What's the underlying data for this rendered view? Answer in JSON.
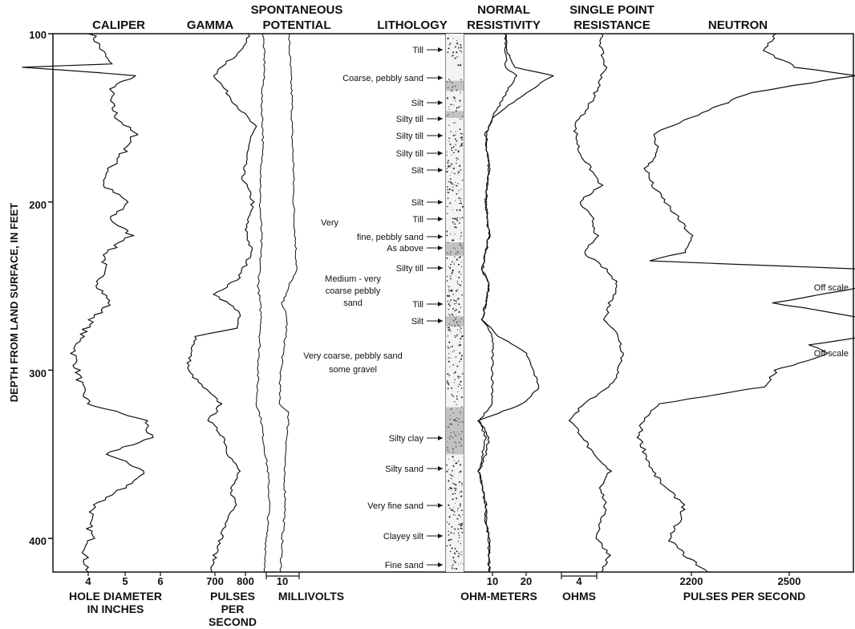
{
  "chart_data": {
    "type": "line",
    "ylabel": "DEPTH FROM LAND SURFACE, IN FEET",
    "ylim": [
      100,
      420
    ],
    "y_ticks": [
      "100",
      "200",
      "300",
      "400"
    ],
    "tracks": [
      {
        "key": "caliper",
        "title": "CALIPER",
        "xlabel": "HOLE DIAMETER IN INCHES",
        "xlabel_lines": [
          "HOLE DIAMETER",
          "IN INCHES"
        ],
        "ticks": [
          "4",
          "5",
          "6"
        ],
        "series": [
          {
            "depth": [
              100,
              118,
              120,
              125,
              130,
              140,
              150,
              160,
              170,
              180,
              190,
              200,
              210,
              220,
              230,
              240,
              250,
              260,
              270,
              280,
              290,
              300,
              310,
              320,
              330,
              340,
              350,
              360,
              370,
              380,
              390,
              400,
              410,
              420
            ],
            "values": [
              4.1,
              4.6,
              2.2,
              5.4,
              4.7,
              4.6,
              4.8,
              5.3,
              5.0,
              4.6,
              4.4,
              5.1,
              4.6,
              5.2,
              4.5,
              4.4,
              4.3,
              4.6,
              4.1,
              3.8,
              3.6,
              3.7,
              3.8,
              4.0,
              5.6,
              5.7,
              4.5,
              5.6,
              5.0,
              4.2,
              4.0,
              4.1,
              3.9,
              4.0
            ]
          }
        ]
      },
      {
        "key": "gamma",
        "title": "GAMMA",
        "xlabel": "PULSES PER SECOND",
        "xlabel_lines": [
          "PULSES",
          "PER",
          "SECOND"
        ],
        "ticks": [
          "700",
          "800"
        ],
        "series": [
          {
            "depth": [
              100,
              110,
              118,
              125,
              140,
              155,
              170,
              185,
              200,
              215,
              230,
              245,
              255,
              265,
              275,
              280,
              290,
              300,
              310,
              320,
              330,
              340,
              350,
              360,
              370,
              380,
              390,
              400,
              410,
              420
            ],
            "values": [
              810,
              790,
              730,
              700,
              760,
              830,
              805,
              790,
              825,
              800,
              820,
              780,
              700,
              780,
              770,
              640,
              620,
              610,
              660,
              720,
              680,
              730,
              745,
              780,
              750,
              770,
              740,
              720,
              700,
              690
            ]
          }
        ]
      },
      {
        "key": "sp",
        "title": "SPONTANEOUS POTENTIAL",
        "title_lines": [
          "SPONTANEOUS",
          "POTENTIAL"
        ],
        "xlabel": "MILLIVOLTS",
        "ticks": [
          "10"
        ],
        "series": [
          {
            "depth": [
              100,
              120,
              140,
              160,
              180,
              200,
              220,
              240,
              250,
              260,
              270,
              280,
              300,
              320,
              325,
              340,
              360,
              380,
              400,
              420
            ],
            "values": [
              14,
              15,
              16,
              16,
              17,
              17,
              18,
              19,
              14,
              10,
              13,
              12,
              9,
              8,
              14,
              13,
              11,
              12,
              10,
              9
            ]
          },
          {
            "depth": [
              100,
              120,
              140,
              160,
              180,
              200,
              220,
              240,
              250,
              260,
              270,
              280,
              300,
              320,
              330,
              340,
              360,
              380,
              400,
              420
            ],
            "values": [
              -2,
              -1,
              -3,
              -2,
              -3,
              -4,
              -3,
              -4,
              -5,
              -4,
              -3,
              -4,
              -5,
              -6,
              -3,
              -2,
              1,
              2,
              0,
              -1
            ]
          }
        ]
      },
      {
        "key": "lithology",
        "title": "LITHOLOGY",
        "units": [
          "Till",
          "Coarse, pebbly sand",
          "Silt",
          "Silty till",
          "Silty till",
          "Silty till",
          "Silt",
          "Silt",
          "Till",
          "Very",
          "fine, pebbly sand",
          "As above",
          "Silty till",
          "Medium - very",
          "coarse pebbly",
          "sand",
          "Till",
          "Silt",
          "Very coarse, pebbly sand",
          "some gravel",
          "Silty clay",
          "Silty sand",
          "Very fine sand",
          "Clayey silt",
          "Fine sand"
        ]
      },
      {
        "key": "resistivity",
        "title": "NORMAL RESISTIVITY",
        "title_lines": [
          "NORMAL",
          "RESISTIVITY"
        ],
        "xlabel": "OHM-METERS",
        "ticks": [
          "10",
          "20"
        ],
        "series": [
          {
            "depth": [
              100,
              110,
              120,
              125,
              135,
              150,
              160,
              180,
              200,
              220,
              230,
              240,
              250,
              260,
              270,
              280,
              290,
              300,
              310,
              320,
              330,
              340,
              350,
              360,
              370,
              380,
              390,
              400,
              410,
              420
            ],
            "values": [
              14,
              14,
              17,
              28,
              20,
              10,
              8,
              9,
              8,
              9,
              8,
              7,
              9,
              8,
              7,
              12,
              20,
              22,
              24,
              19,
              6,
              9,
              8,
              6,
              7,
              8,
              8,
              9,
              9,
              9
            ]
          },
          {
            "depth": [
              100,
              110,
              120,
              125,
              135,
              150,
              160,
              180,
              200,
              220,
              230,
              240,
              250,
              260,
              270,
              280,
              290,
              300,
              310,
              320,
              330,
              340,
              350,
              360,
              370,
              380,
              390,
              400,
              410,
              420
            ],
            "values": [
              14,
              14,
              14,
              17,
              14,
              10,
              8,
              9,
              8,
              9,
              8,
              7,
              9,
              8,
              7,
              10,
              10,
              10,
              10,
              10,
              6,
              8,
              7,
              6,
              7,
              8,
              8,
              9,
              9,
              9
            ]
          }
        ]
      },
      {
        "key": "single_point",
        "title": "SINGLE POINT RESISTANCE",
        "title_lines": [
          "SINGLE POINT",
          "RESISTANCE"
        ],
        "xlabel": "OHMS",
        "ticks": [
          "4"
        ],
        "series": [
          {
            "depth": [
              100,
              110,
              120,
              140,
              155,
              170,
              190,
              200,
              210,
              220,
              230,
              240,
              250,
              260,
              270,
              280,
              290,
              300,
              310,
              320,
              330,
              340,
              350,
              360,
              370,
              380,
              390,
              400,
              410,
              420
            ],
            "values": [
              9,
              9,
              10,
              7,
              3,
              4,
              9,
              4,
              7,
              8,
              5,
              10,
              13,
              11,
              10,
              13,
              14,
              13,
              11,
              5,
              2,
              5,
              7,
              11,
              9,
              10,
              9,
              8,
              11,
              9
            ]
          }
        ]
      },
      {
        "key": "neutron",
        "title": "NEUTRON",
        "xlabel": "PULSES PER SECOND",
        "ticks": [
          "2200",
          "2500"
        ],
        "annotations": [
          "Off scale",
          "Off scale"
        ],
        "series": [
          {
            "depth": [
              100,
              110,
              120,
              125,
              135,
              150,
              160,
              170,
              180,
              190,
              200,
              210,
              220,
              230,
              235,
              240,
              250,
              260,
              270,
              280,
              285,
              290,
              300,
              310,
              320,
              330,
              340,
              350,
              360,
              370,
              380,
              390,
              400,
              410,
              420
            ],
            "values": [
              2460,
              2420,
              2520,
              2700,
              2380,
              2200,
              2080,
              2100,
              2060,
              2080,
              2120,
              2160,
              2200,
              2180,
              2070,
              2730,
              2740,
              2450,
              2760,
              2730,
              2560,
              2620,
              2460,
              2420,
              2100,
              2050,
              2040,
              2060,
              2080,
              2120,
              2180,
              2160,
              2130,
              2180,
              2250
            ]
          }
        ]
      }
    ]
  }
}
